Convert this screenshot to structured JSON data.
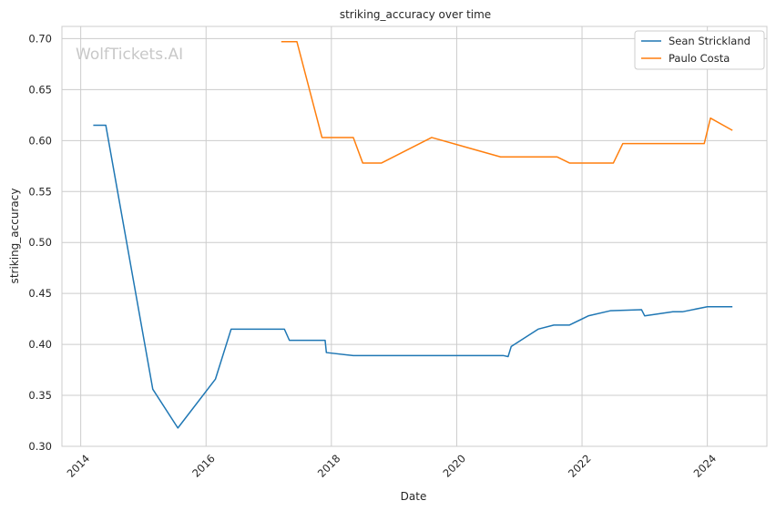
{
  "chart_data": {
    "type": "line",
    "title": "striking_accuracy over time",
    "xlabel": "Date",
    "ylabel": "striking_accuracy",
    "watermark": "WolfTickets.AI",
    "xlim": [
      2013.7,
      2024.95
    ],
    "ylim": [
      0.3,
      0.712
    ],
    "x_ticks": [
      2014,
      2016,
      2018,
      2020,
      2022,
      2024
    ],
    "y_ticks": [
      0.3,
      0.35,
      0.4,
      0.45,
      0.5,
      0.55,
      0.6,
      0.65,
      0.7
    ],
    "y_tick_labels": [
      "0.30",
      "0.35",
      "0.40",
      "0.45",
      "0.50",
      "0.55",
      "0.60",
      "0.65",
      "0.70"
    ],
    "grid": true,
    "legend_position": "top-right",
    "series": [
      {
        "name": "Sean Strickland",
        "color": "#1f77b4",
        "x": [
          2014.2,
          2014.4,
          2015.15,
          2015.55,
          2016.15,
          2016.4,
          2017.25,
          2017.33,
          2017.9,
          2017.92,
          2018.35,
          2020.75,
          2020.82,
          2020.87,
          2021.3,
          2021.55,
          2021.8,
          2022.1,
          2022.45,
          2022.95,
          2023.0,
          2023.45,
          2023.6,
          2024.0,
          2024.4
        ],
        "y": [
          0.615,
          0.615,
          0.356,
          0.318,
          0.366,
          0.415,
          0.415,
          0.404,
          0.404,
          0.392,
          0.389,
          0.389,
          0.388,
          0.398,
          0.415,
          0.419,
          0.419,
          0.428,
          0.433,
          0.434,
          0.428,
          0.432,
          0.432,
          0.437,
          0.437
        ]
      },
      {
        "name": "Paulo Costa",
        "color": "#ff7f0e",
        "x": [
          2017.2,
          2017.45,
          2017.85,
          2018.35,
          2018.5,
          2018.8,
          2019.6,
          2020.7,
          2021.6,
          2021.8,
          2022.5,
          2022.65,
          2023.95,
          2024.05,
          2024.4
        ],
        "y": [
          0.697,
          0.697,
          0.603,
          0.603,
          0.578,
          0.578,
          0.603,
          0.584,
          0.584,
          0.578,
          0.578,
          0.597,
          0.597,
          0.622,
          0.61
        ]
      }
    ]
  }
}
